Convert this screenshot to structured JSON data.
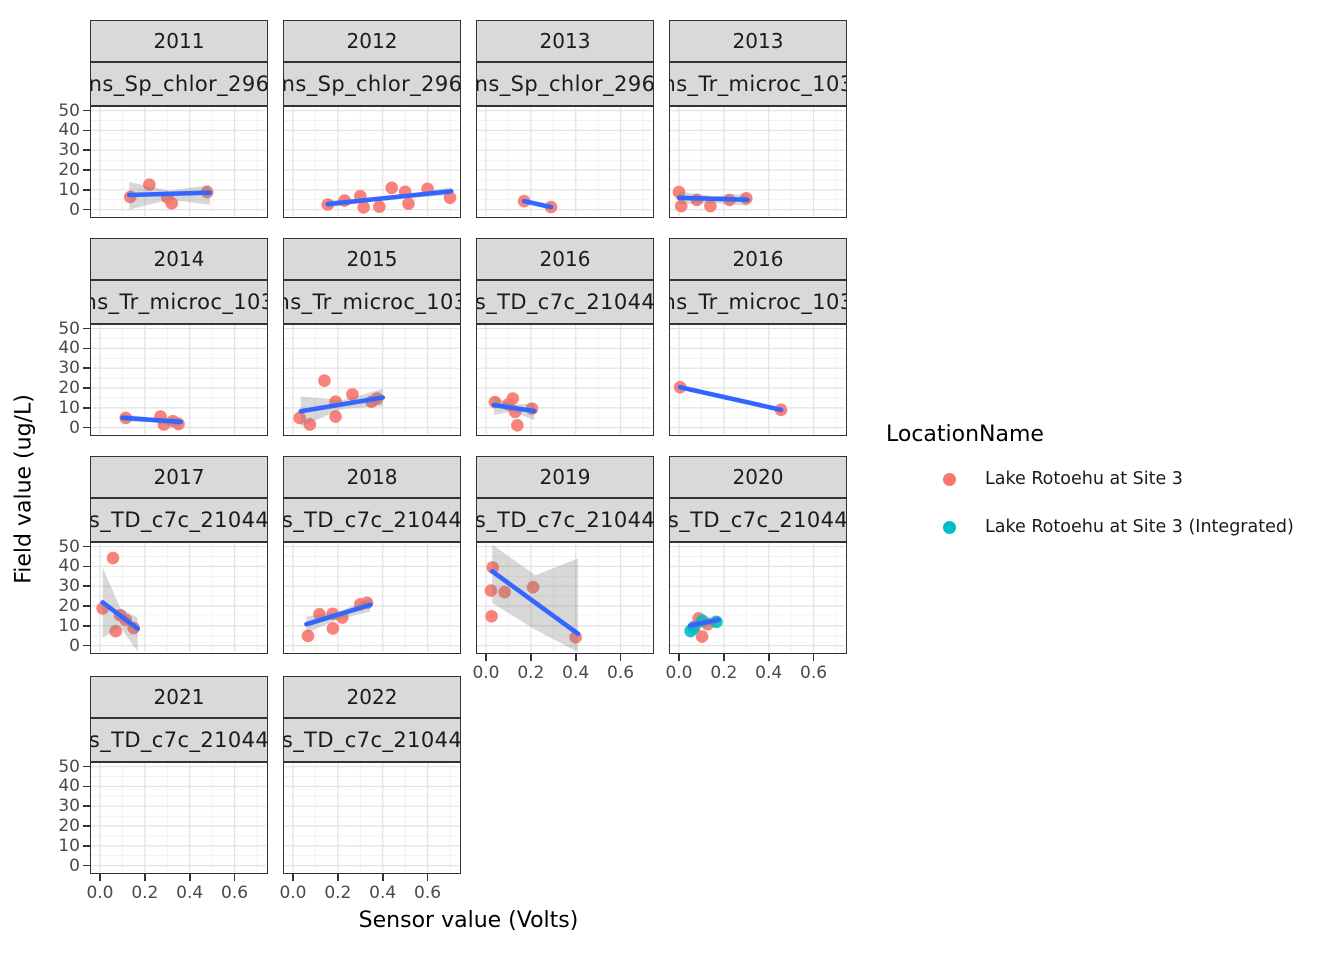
{
  "axes": {
    "x_title": "Sensor value (Volts)",
    "y_title": "Field value (ug/L)",
    "x_tick_labels": [
      "0.0",
      "0.2",
      "0.4",
      "0.6"
    ],
    "x_tick_values": [
      0,
      0.2,
      0.4,
      0.6
    ],
    "x_minor": [
      0.1,
      0.3,
      0.5,
      0.7
    ],
    "y_tick_labels": [
      "0",
      "10",
      "20",
      "30",
      "40",
      "50"
    ],
    "y_tick_values": [
      0,
      10,
      20,
      30,
      40,
      50
    ],
    "y_minor": [
      5,
      15,
      25,
      35,
      45
    ],
    "xlim": [
      -0.04,
      0.74
    ],
    "ylim": [
      -3.2,
      51.8
    ],
    "grid": "on"
  },
  "legend": {
    "title": "LocationName",
    "position": "right",
    "items": [
      {
        "label": "Lake Rotoehu at Site 3",
        "color": "#F8766D"
      },
      {
        "label": "Lake Rotoehu at Site 3 (Integrated)",
        "color": "#00BFC4"
      }
    ]
  },
  "style": {
    "smooth_line_color": "#3366FF",
    "band_color": "rgba(127,127,127,0.30)",
    "strip_bg": "#D9D9D9",
    "panel_border": "#333333",
    "grid_major": "#E2E2E2",
    "grid_minor": "#F1F1F1",
    "tick_label_color": "#4a4a4a"
  },
  "chart_data": {
    "type": "scatter",
    "facet_rows": 4,
    "facet_cols": 4,
    "facets": [
      {
        "year": "2011",
        "sensor": "ns_Sp_chlor_296",
        "row": 0,
        "col": 0,
        "x_axis": false,
        "pts": [
          [
            0.135,
            6.4,
            0
          ],
          [
            0.22,
            12.6,
            0
          ],
          [
            0.3,
            6.2,
            0
          ],
          [
            0.32,
            3.2,
            0
          ],
          [
            0.478,
            8.9,
            0
          ]
        ],
        "line": [
          0.13,
          7.4,
          0.49,
          8.6
        ],
        "band": {
          "x": [
            0.13,
            0.31,
            0.49
          ],
          "u": [
            14,
            9.5,
            12.5
          ],
          "l": [
            0,
            5,
            2.5
          ]
        }
      },
      {
        "year": "2012",
        "sensor": "ns_Sp_chlor_296",
        "row": 0,
        "col": 1,
        "x_axis": false,
        "pts": [
          [
            0.155,
            2.6,
            0
          ],
          [
            0.23,
            4.6,
            0
          ],
          [
            0.3,
            6.8,
            0
          ],
          [
            0.315,
            1.2,
            0
          ],
          [
            0.385,
            1.5,
            0
          ],
          [
            0.44,
            11,
            0
          ],
          [
            0.5,
            9,
            0
          ],
          [
            0.515,
            3,
            0
          ],
          [
            0.6,
            10.5,
            0
          ],
          [
            0.7,
            6,
            0
          ]
        ],
        "line": [
          0.155,
          2.8,
          0.705,
          9.3
        ],
        "band": {
          "x": [
            0.155,
            0.43,
            0.705
          ],
          "u": [
            4.6,
            6.5,
            11.2
          ],
          "l": [
            1.0,
            5.2,
            7.4
          ]
        }
      },
      {
        "year": "2013",
        "sensor": "ns_Sp_chlor_296",
        "row": 0,
        "col": 2,
        "x_axis": false,
        "pts": [
          [
            0.17,
            4.3,
            0
          ],
          [
            0.29,
            1.3,
            0
          ]
        ],
        "line": [
          0.17,
          4.3,
          0.29,
          1.3
        ],
        "band": null
      },
      {
        "year": "2013",
        "sensor": "ns_Tr_microc_103",
        "row": 0,
        "col": 3,
        "x_axis": false,
        "pts": [
          [
            0.0,
            8.9,
            0
          ],
          [
            0.01,
            1.8,
            0
          ],
          [
            0.08,
            4.9,
            0
          ],
          [
            0.14,
            1.8,
            0
          ],
          [
            0.225,
            4.9,
            0
          ],
          [
            0.3,
            5.7,
            0
          ]
        ],
        "line": [
          0.0,
          6.0,
          0.305,
          5.0
        ],
        "band": {
          "x": [
            0.0,
            0.15,
            0.305
          ],
          "u": [
            9.2,
            6.8,
            8.0
          ],
          "l": [
            2.8,
            3.4,
            2.0
          ]
        }
      },
      {
        "year": "2014",
        "sensor": "ns_Tr_microc_103",
        "row": 1,
        "col": 0,
        "x_axis": false,
        "pts": [
          [
            0.115,
            4.9,
            0
          ],
          [
            0.27,
            5.6,
            0
          ],
          [
            0.285,
            1.6,
            0
          ],
          [
            0.325,
            3.3,
            0
          ],
          [
            0.35,
            1.8,
            0
          ]
        ],
        "line": [
          0.1,
          5.0,
          0.36,
          2.9
        ],
        "band": {
          "x": [
            0.1,
            0.23,
            0.36
          ],
          "u": [
            6.8,
            5.0,
            5.2
          ],
          "l": [
            3.2,
            2.6,
            0.6
          ]
        }
      },
      {
        "year": "2015",
        "sensor": "ns_Tr_microc_103",
        "row": 1,
        "col": 1,
        "x_axis": false,
        "pts": [
          [
            0.03,
            4.9,
            0
          ],
          [
            0.075,
            1.6,
            0
          ],
          [
            0.14,
            23.7,
            0
          ],
          [
            0.19,
            13.1,
            0
          ],
          [
            0.19,
            5.6,
            0
          ],
          [
            0.265,
            16.8,
            0
          ],
          [
            0.35,
            13.1,
            0
          ],
          [
            0.375,
            14.7,
            0
          ]
        ],
        "line": [
          0.035,
          8.3,
          0.4,
          15.2
        ],
        "band": {
          "x": [
            0.035,
            0.22,
            0.4
          ],
          "u": [
            15.8,
            13.8,
            19.6
          ],
          "l": [
            0.6,
            9.4,
            10.8
          ]
        }
      },
      {
        "year": "2016",
        "sensor": "s_TD_c7c_21044",
        "row": 1,
        "col": 2,
        "x_axis": false,
        "pts": [
          [
            0.04,
            12.9,
            0
          ],
          [
            0.1,
            11.8,
            0
          ],
          [
            0.12,
            14.7,
            0
          ],
          [
            0.13,
            8.0,
            0
          ],
          [
            0.14,
            1.2,
            0
          ],
          [
            0.205,
            9.6,
            0
          ]
        ],
        "line": [
          0.035,
          11.4,
          0.215,
          8.4
        ],
        "band": {
          "x": [
            0.035,
            0.12,
            0.215
          ],
          "u": [
            15.6,
            11.6,
            12.4
          ],
          "l": [
            6.4,
            8.2,
            3.8
          ]
        }
      },
      {
        "year": "2016",
        "sensor": "ns_Tr_microc_103",
        "row": 1,
        "col": 3,
        "x_axis": false,
        "pts": [
          [
            0.005,
            20.4,
            0
          ],
          [
            0.455,
            9.0,
            0
          ]
        ],
        "line": [
          0.005,
          20.4,
          0.455,
          9.0
        ],
        "band": null
      },
      {
        "year": "2017",
        "sensor": "s_TD_c7c_21044",
        "row": 2,
        "col": 0,
        "x_axis": false,
        "pts": [
          [
            0.058,
            44.2,
            0
          ],
          [
            0.012,
            18.8,
            0
          ],
          [
            0.09,
            15.4,
            0
          ],
          [
            0.115,
            13.0,
            0
          ],
          [
            0.07,
            7.3,
            0
          ],
          [
            0.15,
            8.9,
            0
          ]
        ],
        "line": [
          0.012,
          21.8,
          0.168,
          8.6
        ],
        "band": {
          "x": [
            0.012,
            0.09,
            0.168
          ],
          "u": [
            39.5,
            19.0,
            14.0
          ],
          "l": [
            4.0,
            9.5,
            -3.0
          ]
        }
      },
      {
        "year": "2018",
        "sensor": "s_TD_c7c_21044",
        "row": 2,
        "col": 1,
        "x_axis": false,
        "pts": [
          [
            0.067,
            4.9,
            0
          ],
          [
            0.118,
            15.9,
            0
          ],
          [
            0.177,
            16.1,
            0
          ],
          [
            0.22,
            14.2,
            0
          ],
          [
            0.178,
            8.7,
            0
          ],
          [
            0.3,
            20.9,
            0
          ],
          [
            0.33,
            21.6,
            0
          ]
        ],
        "line": [
          0.06,
          10.8,
          0.345,
          20.6
        ],
        "band": {
          "x": [
            0.06,
            0.2,
            0.345
          ],
          "u": [
            14.6,
            17.0,
            23.8
          ],
          "l": [
            6.4,
            13.2,
            17.2
          ]
        }
      },
      {
        "year": "2019",
        "sensor": "s_TD_c7c_21044",
        "row": 2,
        "col": 2,
        "x_axis": true,
        "pts": [
          [
            0.03,
            39.5,
            0
          ],
          [
            0.022,
            27.8,
            0
          ],
          [
            0.083,
            27.0,
            0
          ],
          [
            0.025,
            14.8,
            0
          ],
          [
            0.21,
            29.5,
            0
          ],
          [
            0.4,
            4.2,
            0
          ]
        ],
        "line": [
          0.028,
          37.5,
          0.41,
          6.0
        ],
        "band": {
          "x": [
            0.028,
            0.22,
            0.41
          ],
          "u": [
            51.0,
            35.5,
            44.0
          ],
          "l": [
            21.5,
            8.0,
            -3.2
          ]
        }
      },
      {
        "year": "2020",
        "sensor": "s_TD_c7c_21044",
        "row": 2,
        "col": 3,
        "x_axis": true,
        "pts": [
          [
            0.088,
            13.8,
            0
          ],
          [
            0.103,
            4.6,
            0
          ],
          [
            0.128,
            10.8,
            0
          ],
          [
            0.068,
            9.3,
            0
          ],
          [
            0.052,
            7.4,
            1
          ],
          [
            0.066,
            9.0,
            1
          ],
          [
            0.104,
            12.6,
            1
          ],
          [
            0.167,
            12.0,
            1
          ]
        ],
        "line": [
          0.05,
          10.2,
          0.176,
          13.0
        ],
        "band": {
          "x": [
            0.05,
            0.176
          ],
          "u": [
            12.4,
            15.2
          ],
          "l": [
            8.0,
            10.8
          ]
        }
      },
      {
        "year": "2021",
        "sensor": "s_TD_c7c_21044",
        "row": 3,
        "col": 0,
        "x_axis": true,
        "pts": [],
        "line": null,
        "band": null
      },
      {
        "year": "2022",
        "sensor": "s_TD_c7c_21044",
        "row": 3,
        "col": 1,
        "x_axis": true,
        "pts": [],
        "line": null,
        "band": null
      }
    ]
  }
}
